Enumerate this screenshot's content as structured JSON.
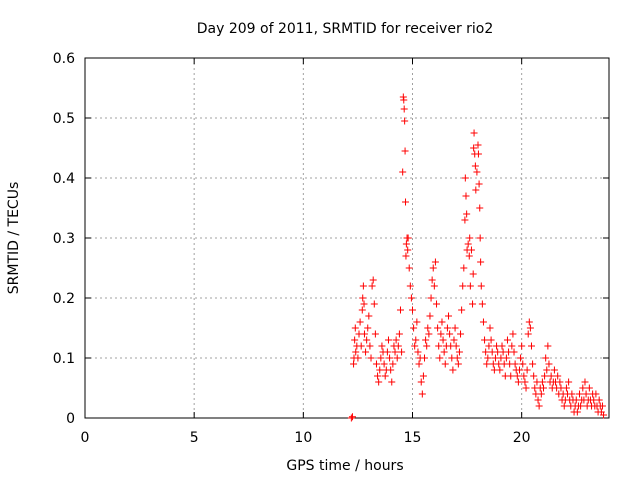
{
  "chart_data": {
    "type": "scatter",
    "title": "Day 209 of 2011, SRMTID for receiver rio2",
    "xlabel": "GPS time / hours",
    "ylabel": "SRMTID / TECUs",
    "xlim": [
      0,
      24
    ],
    "ylim": [
      0,
      0.6
    ],
    "xticks": [
      0,
      5,
      10,
      15,
      20
    ],
    "xtick_labels": [
      "0",
      "5",
      "10",
      "15",
      "20"
    ],
    "yticks": [
      0,
      0.1,
      0.2,
      0.3,
      0.4,
      0.5,
      0.6
    ],
    "ytick_labels": [
      "0",
      "0.1",
      "0.2",
      "0.3",
      "0.4",
      "0.5",
      "0.6"
    ],
    "grid": true,
    "marker": "+",
    "color": "#ff0000",
    "series": [
      {
        "name": "rio2",
        "points": [
          [
            12.2,
            0.0
          ],
          [
            12.25,
            0.002
          ],
          [
            12.3,
            0.09
          ],
          [
            12.32,
            0.1
          ],
          [
            12.35,
            0.13
          ],
          [
            12.38,
            0.15
          ],
          [
            12.4,
            0.11
          ],
          [
            12.45,
            0.12
          ],
          [
            12.5,
            0.1
          ],
          [
            12.55,
            0.14
          ],
          [
            12.6,
            0.16
          ],
          [
            12.65,
            0.12
          ],
          [
            12.7,
            0.18
          ],
          [
            12.72,
            0.2
          ],
          [
            12.75,
            0.22
          ],
          [
            12.78,
            0.19
          ],
          [
            12.8,
            0.14
          ],
          [
            12.85,
            0.11
          ],
          [
            12.9,
            0.13
          ],
          [
            12.95,
            0.15
          ],
          [
            13.0,
            0.17
          ],
          [
            13.05,
            0.12
          ],
          [
            13.1,
            0.1
          ],
          [
            13.15,
            0.22
          ],
          [
            13.2,
            0.23
          ],
          [
            13.25,
            0.19
          ],
          [
            13.3,
            0.14
          ],
          [
            13.35,
            0.09
          ],
          [
            13.4,
            0.07
          ],
          [
            13.45,
            0.06
          ],
          [
            13.5,
            0.08
          ],
          [
            13.55,
            0.1
          ],
          [
            13.6,
            0.12
          ],
          [
            13.65,
            0.11
          ],
          [
            13.7,
            0.09
          ],
          [
            13.75,
            0.07
          ],
          [
            13.8,
            0.08
          ],
          [
            13.85,
            0.11
          ],
          [
            13.9,
            0.13
          ],
          [
            13.95,
            0.1
          ],
          [
            14.0,
            0.08
          ],
          [
            14.05,
            0.06
          ],
          [
            14.1,
            0.09
          ],
          [
            14.15,
            0.12
          ],
          [
            14.2,
            0.11
          ],
          [
            14.25,
            0.13
          ],
          [
            14.3,
            0.1
          ],
          [
            14.35,
            0.12
          ],
          [
            14.4,
            0.14
          ],
          [
            14.45,
            0.18
          ],
          [
            14.5,
            0.11
          ],
          [
            14.55,
            0.41
          ],
          [
            14.58,
            0.535
          ],
          [
            14.6,
            0.53
          ],
          [
            14.62,
            0.515
          ],
          [
            14.64,
            0.495
          ],
          [
            14.66,
            0.445
          ],
          [
            14.68,
            0.36
          ],
          [
            14.7,
            0.27
          ],
          [
            14.72,
            0.29
          ],
          [
            14.75,
            0.3
          ],
          [
            14.78,
            0.28
          ],
          [
            14.8,
            0.3
          ],
          [
            14.85,
            0.25
          ],
          [
            14.9,
            0.22
          ],
          [
            14.95,
            0.2
          ],
          [
            15.0,
            0.18
          ],
          [
            15.05,
            0.15
          ],
          [
            15.1,
            0.12
          ],
          [
            15.15,
            0.13
          ],
          [
            15.2,
            0.16
          ],
          [
            15.25,
            0.11
          ],
          [
            15.3,
            0.09
          ],
          [
            15.35,
            0.1
          ],
          [
            15.4,
            0.06
          ],
          [
            15.45,
            0.04
          ],
          [
            15.5,
            0.07
          ],
          [
            15.55,
            0.1
          ],
          [
            15.6,
            0.13
          ],
          [
            15.65,
            0.12
          ],
          [
            15.7,
            0.15
          ],
          [
            15.75,
            0.14
          ],
          [
            15.8,
            0.17
          ],
          [
            15.85,
            0.2
          ],
          [
            15.9,
            0.23
          ],
          [
            15.95,
            0.25
          ],
          [
            16.0,
            0.22
          ],
          [
            16.05,
            0.26
          ],
          [
            16.1,
            0.19
          ],
          [
            16.15,
            0.15
          ],
          [
            16.2,
            0.12
          ],
          [
            16.25,
            0.1
          ],
          [
            16.3,
            0.14
          ],
          [
            16.35,
            0.16
          ],
          [
            16.4,
            0.13
          ],
          [
            16.45,
            0.11
          ],
          [
            16.5,
            0.09
          ],
          [
            16.55,
            0.12
          ],
          [
            16.6,
            0.15
          ],
          [
            16.65,
            0.17
          ],
          [
            16.7,
            0.14
          ],
          [
            16.75,
            0.12
          ],
          [
            16.8,
            0.1
          ],
          [
            16.85,
            0.08
          ],
          [
            16.9,
            0.13
          ],
          [
            16.95,
            0.15
          ],
          [
            17.0,
            0.12
          ],
          [
            17.05,
            0.1
          ],
          [
            17.1,
            0.09
          ],
          [
            17.15,
            0.11
          ],
          [
            17.2,
            0.14
          ],
          [
            17.25,
            0.18
          ],
          [
            17.3,
            0.22
          ],
          [
            17.35,
            0.25
          ],
          [
            17.4,
            0.33
          ],
          [
            17.42,
            0.4
          ],
          [
            17.45,
            0.37
          ],
          [
            17.48,
            0.34
          ],
          [
            17.5,
            0.28
          ],
          [
            17.55,
            0.29
          ],
          [
            17.6,
            0.27
          ],
          [
            17.62,
            0.3
          ],
          [
            17.65,
            0.22
          ],
          [
            17.7,
            0.28
          ],
          [
            17.75,
            0.19
          ],
          [
            17.78,
            0.24
          ],
          [
            17.8,
            0.45
          ],
          [
            17.82,
            0.475
          ],
          [
            17.85,
            0.44
          ],
          [
            17.88,
            0.42
          ],
          [
            17.9,
            0.38
          ],
          [
            17.95,
            0.41
          ],
          [
            18.0,
            0.455
          ],
          [
            18.02,
            0.44
          ],
          [
            18.05,
            0.39
          ],
          [
            18.08,
            0.35
          ],
          [
            18.1,
            0.3
          ],
          [
            18.12,
            0.26
          ],
          [
            18.15,
            0.22
          ],
          [
            18.2,
            0.19
          ],
          [
            18.25,
            0.16
          ],
          [
            18.3,
            0.13
          ],
          [
            18.35,
            0.11
          ],
          [
            18.4,
            0.09
          ],
          [
            18.45,
            0.1
          ],
          [
            18.5,
            0.12
          ],
          [
            18.55,
            0.15
          ],
          [
            18.6,
            0.13
          ],
          [
            18.65,
            0.11
          ],
          [
            18.7,
            0.09
          ],
          [
            18.75,
            0.08
          ],
          [
            18.8,
            0.1
          ],
          [
            18.85,
            0.12
          ],
          [
            18.9,
            0.11
          ],
          [
            18.95,
            0.09
          ],
          [
            19.0,
            0.08
          ],
          [
            19.05,
            0.1
          ],
          [
            19.1,
            0.12
          ],
          [
            19.15,
            0.11
          ],
          [
            19.2,
            0.09
          ],
          [
            19.25,
            0.07
          ],
          [
            19.3,
            0.1
          ],
          [
            19.35,
            0.13
          ],
          [
            19.4,
            0.11
          ],
          [
            19.45,
            0.09
          ],
          [
            19.5,
            0.07
          ],
          [
            19.55,
            0.12
          ],
          [
            19.6,
            0.14
          ],
          [
            19.65,
            0.11
          ],
          [
            19.7,
            0.09
          ],
          [
            19.75,
            0.08
          ],
          [
            19.8,
            0.07
          ],
          [
            19.85,
            0.06
          ],
          [
            19.9,
            0.08
          ],
          [
            19.95,
            0.1
          ],
          [
            20.0,
            0.12
          ],
          [
            20.05,
            0.09
          ],
          [
            20.1,
            0.07
          ],
          [
            20.15,
            0.06
          ],
          [
            20.2,
            0.05
          ],
          [
            20.25,
            0.08
          ],
          [
            20.3,
            0.14
          ],
          [
            20.35,
            0.16
          ],
          [
            20.4,
            0.15
          ],
          [
            20.45,
            0.12
          ],
          [
            20.5,
            0.09
          ],
          [
            20.55,
            0.07
          ],
          [
            20.6,
            0.05
          ],
          [
            20.65,
            0.04
          ],
          [
            20.7,
            0.06
          ],
          [
            20.75,
            0.03
          ],
          [
            20.8,
            0.02
          ],
          [
            20.85,
            0.05
          ],
          [
            20.9,
            0.04
          ],
          [
            20.95,
            0.06
          ],
          [
            21.0,
            0.05
          ],
          [
            21.05,
            0.07
          ],
          [
            21.1,
            0.1
          ],
          [
            21.15,
            0.08
          ],
          [
            21.2,
            0.12
          ],
          [
            21.25,
            0.09
          ],
          [
            21.3,
            0.06
          ],
          [
            21.35,
            0.07
          ],
          [
            21.4,
            0.05
          ],
          [
            21.45,
            0.06
          ],
          [
            21.5,
            0.08
          ],
          [
            21.55,
            0.06
          ],
          [
            21.6,
            0.05
          ],
          [
            21.65,
            0.07
          ],
          [
            21.7,
            0.04
          ],
          [
            21.75,
            0.06
          ],
          [
            21.8,
            0.05
          ],
          [
            21.85,
            0.03
          ],
          [
            21.9,
            0.04
          ],
          [
            21.95,
            0.02
          ],
          [
            22.0,
            0.03
          ],
          [
            22.05,
            0.05
          ],
          [
            22.1,
            0.04
          ],
          [
            22.15,
            0.06
          ],
          [
            22.2,
            0.03
          ],
          [
            22.25,
            0.02
          ],
          [
            22.3,
            0.04
          ],
          [
            22.35,
            0.03
          ],
          [
            22.4,
            0.01
          ],
          [
            22.45,
            0.02
          ],
          [
            22.5,
            0.03
          ],
          [
            22.55,
            0.01
          ],
          [
            22.6,
            0.02
          ],
          [
            22.65,
            0.04
          ],
          [
            22.7,
            0.02
          ],
          [
            22.75,
            0.03
          ],
          [
            22.8,
            0.05
          ],
          [
            22.85,
            0.03
          ],
          [
            22.9,
            0.06
          ],
          [
            22.95,
            0.04
          ],
          [
            23.0,
            0.02
          ],
          [
            23.05,
            0.03
          ],
          [
            23.1,
            0.05
          ],
          [
            23.15,
            0.03
          ],
          [
            23.2,
            0.02
          ],
          [
            23.25,
            0.04
          ],
          [
            23.3,
            0.03
          ],
          [
            23.35,
            0.02
          ],
          [
            23.4,
            0.04
          ],
          [
            23.45,
            0.02
          ],
          [
            23.5,
            0.01
          ],
          [
            23.55,
            0.03
          ],
          [
            23.6,
            0.02
          ],
          [
            23.65,
            0.01
          ],
          [
            23.7,
            0.02
          ],
          [
            23.75,
            0.005
          ]
        ]
      }
    ]
  }
}
